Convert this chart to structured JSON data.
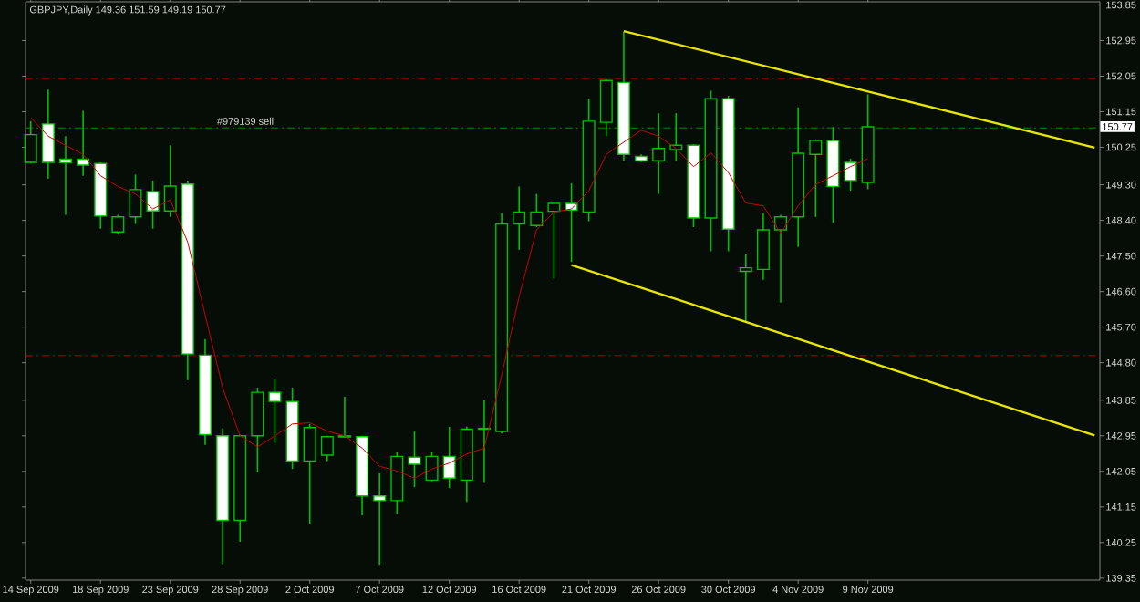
{
  "chart_data": {
    "type": "candlestick",
    "title": "GBPJPY,Daily 149.36 151.59 149.19 150.77",
    "color": "#00c000",
    "categories": [
      "14 Sep 2009",
      null,
      null,
      null,
      "18 Sep 2009",
      null,
      null,
      null,
      "23 Sep 2009",
      null,
      null,
      null,
      "28 Sep 2009",
      null,
      null,
      null,
      "2 Oct 2009",
      null,
      null,
      null,
      "7 Oct 2009",
      null,
      null,
      null,
      "12 Oct 2009",
      null,
      null,
      null,
      "16 Oct 2009",
      null,
      null,
      null,
      "21 Oct 2009",
      null,
      null,
      null,
      "26 Oct 2009",
      null,
      null,
      null,
      "30 Oct 2009",
      null,
      null,
      null,
      "4 Nov 2009",
      null,
      null,
      null,
      "9 Nov 2009",
      null,
      null,
      null,
      null,
      null,
      null,
      null,
      null,
      null,
      null,
      null,
      null,
      null
    ],
    "ohlc": [
      [
        149.87,
        150.91,
        149.84,
        150.57
      ],
      [
        150.84,
        151.71,
        149.46,
        149.87
      ],
      [
        149.95,
        150.53,
        148.54,
        149.86
      ],
      [
        149.95,
        151.17,
        149.53,
        149.8
      ],
      [
        149.84,
        149.87,
        148.19,
        148.51
      ],
      [
        148.11,
        148.54,
        148.05,
        148.49
      ],
      [
        148.49,
        149.56,
        148.31,
        149.18
      ],
      [
        149.13,
        149.41,
        148.19,
        148.64
      ],
      [
        148.64,
        150.3,
        148.49,
        149.27
      ],
      [
        149.32,
        149.41,
        144.36,
        145.02
      ],
      [
        144.99,
        145.4,
        142.72,
        142.98
      ],
      [
        142.95,
        143.14,
        139.7,
        140.81
      ],
      [
        140.81,
        142.98,
        140.27,
        142.95
      ],
      [
        142.95,
        144.17,
        142.03,
        144.05
      ],
      [
        144.05,
        144.39,
        142.77,
        143.82
      ],
      [
        143.82,
        144.17,
        142.11,
        142.31
      ],
      [
        142.31,
        143.25,
        140.73,
        143.16
      ],
      [
        142.46,
        142.95,
        142.31,
        142.93
      ],
      [
        142.92,
        143.94,
        142.9,
        142.95
      ],
      [
        142.93,
        142.95,
        140.94,
        141.43
      ],
      [
        141.43,
        142.0,
        139.69,
        141.31
      ],
      [
        141.31,
        142.53,
        140.97,
        142.43
      ],
      [
        142.41,
        143.07,
        141.65,
        142.23
      ],
      [
        141.83,
        142.53,
        141.8,
        142.43
      ],
      [
        142.43,
        143.18,
        141.63,
        141.88
      ],
      [
        141.83,
        143.18,
        141.28,
        143.12
      ],
      [
        143.12,
        143.86,
        141.78,
        143.14
      ],
      [
        143.06,
        148.58,
        143.01,
        148.31
      ],
      [
        148.31,
        149.26,
        147.66,
        148.61
      ],
      [
        148.27,
        149.07,
        148.23,
        148.61
      ],
      [
        148.63,
        148.87,
        146.93,
        148.83
      ],
      [
        148.83,
        149.34,
        147.35,
        148.66
      ],
      [
        148.61,
        151.48,
        148.38,
        150.91
      ],
      [
        150.88,
        151.98,
        150.53,
        151.94
      ],
      [
        151.89,
        153.18,
        149.91,
        150.07
      ],
      [
        150.02,
        150.07,
        149.88,
        149.91
      ],
      [
        149.91,
        151.11,
        149.07,
        150.22
      ],
      [
        150.19,
        151.11,
        149.91,
        150.3
      ],
      [
        150.3,
        150.33,
        148.23,
        148.46
      ],
      [
        148.46,
        151.68,
        147.62,
        151.48
      ],
      [
        151.48,
        151.55,
        147.62,
        148.18
      ],
      [
        147.11,
        147.54,
        145.85,
        147.2
      ],
      [
        147.16,
        148.58,
        146.9,
        148.16
      ],
      [
        148.16,
        148.54,
        146.32,
        148.49
      ],
      [
        148.49,
        151.26,
        147.73,
        150.1
      ],
      [
        150.07,
        150.45,
        148.49,
        150.42
      ],
      [
        150.42,
        150.76,
        148.34,
        149.26
      ],
      [
        149.87,
        149.96,
        149.15,
        149.41
      ],
      [
        149.36,
        151.59,
        149.19,
        150.77
      ],
      null,
      null,
      null,
      null,
      null,
      null,
      null,
      null,
      null,
      null,
      null,
      null,
      null
    ],
    "series": [
      {
        "type": "line",
        "color": "#cc0000",
        "values": [
          151.0,
          150.53,
          150.3,
          150.07,
          149.53,
          149.26,
          149.07,
          148.69,
          148.92,
          147.85,
          146.01,
          144.17,
          142.95,
          142.67,
          142.95,
          143.25,
          143.28,
          143.07,
          142.95,
          142.64,
          142.18,
          142.06,
          141.88,
          142.11,
          142.26,
          142.49,
          142.64,
          144.48,
          146.47,
          148.16,
          148.61,
          148.69,
          149.15,
          150.07,
          150.38,
          150.68,
          150.53,
          150.22,
          149.76,
          150.11,
          149.61,
          148.84,
          148.77,
          148.08,
          148.77,
          149.31,
          149.53,
          149.76,
          149.96,
          null,
          null,
          null,
          null,
          null,
          null,
          null,
          null,
          null,
          null,
          null,
          null,
          null
        ]
      },
      {
        "type": "line",
        "color": "#e6e600",
        "values": [
          null,
          null,
          null,
          null,
          null,
          null,
          null,
          null,
          null,
          null,
          null,
          null,
          null,
          null,
          null,
          null,
          null,
          null,
          null,
          null,
          null,
          null,
          null,
          null,
          null,
          null,
          null,
          null,
          null,
          null,
          null,
          null,
          null,
          null,
          153.19,
          null,
          null,
          null,
          null,
          null,
          null,
          null,
          null,
          null,
          null,
          null,
          null,
          null,
          null,
          null,
          null,
          null,
          null,
          null,
          null,
          null,
          null,
          null,
          null,
          null,
          null,
          150.24
        ]
      },
      {
        "type": "line",
        "color": "#e6e600",
        "values": [
          null,
          null,
          null,
          null,
          null,
          null,
          null,
          null,
          null,
          null,
          null,
          null,
          null,
          null,
          null,
          null,
          null,
          null,
          null,
          null,
          null,
          null,
          null,
          null,
          null,
          null,
          null,
          null,
          null,
          null,
          null,
          147.27,
          null,
          null,
          null,
          null,
          null,
          null,
          null,
          null,
          null,
          null,
          null,
          null,
          null,
          null,
          null,
          null,
          null,
          null,
          null,
          null,
          null,
          null,
          null,
          null,
          null,
          null,
          null,
          null,
          null,
          142.96
        ]
      }
    ],
    "ylim": [
      139.3,
      153.93
    ],
    "yticks": [
      153.85,
      152.95,
      152.05,
      151.15,
      150.25,
      {
        "value": 149.3,
        "label": "149.30"
      },
      {
        "value": 148.4,
        "label": "148.40"
      },
      {
        "value": 147.5,
        "label": "147.50"
      },
      {
        "value": 146.6,
        "label": "146.60"
      },
      {
        "value": 145.7,
        "label": "145.70"
      },
      {
        "value": 144.8,
        "label": "144.80"
      },
      143.85,
      142.95,
      142.05,
      141.15,
      140.25,
      139.35
    ],
    "ref_lines": [
      {
        "axis": "y",
        "value": 151.99,
        "color": "#990000",
        "line_style": "dashed"
      },
      {
        "axis": "y",
        "value": 144.98,
        "color": "#990000",
        "line_style": "dashed"
      },
      {
        "axis": "y",
        "value": 150.74,
        "color": "#008800",
        "line_style": "dashed",
        "label": "#979139 sell"
      }
    ],
    "annotations": [
      {
        "text": "150.77",
        "y": 150.77
      }
    ],
    "marker": "none"
  }
}
